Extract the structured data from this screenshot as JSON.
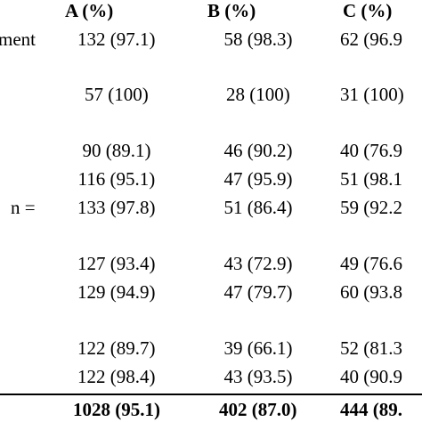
{
  "table": {
    "header": [
      "A (%)",
      "B (%)",
      "C (%)"
    ],
    "rows": [
      {
        "label": "ment",
        "cells": [
          "132 (97.1)",
          "58 (98.3)",
          "62 (96.9"
        ]
      },
      {
        "cells": [
          "57 (100)",
          "28 (100)",
          "31 (100)"
        ]
      },
      {
        "cells": [
          "90 (89.1)",
          "46 (90.2)",
          "40 (76.9"
        ]
      },
      {
        "cells": [
          "116 (95.1)",
          "47 (95.9)",
          "51 (98.1"
        ]
      },
      {
        "label": "n =",
        "cells": [
          "133 (97.8)",
          "51 (86.4)",
          "59 (92.2"
        ]
      },
      {
        "cells": [
          "127 (93.4)",
          "43 (72.9)",
          "49 (76.6"
        ]
      },
      {
        "cells": [
          "129 (94.9)",
          "47 (79.7)",
          "60 (93.8"
        ]
      },
      {
        "cells": [
          "122 (89.7)",
          "39 (66.1)",
          "52 (81.3"
        ]
      },
      {
        "cells": [
          "122 (98.4)",
          "43 (93.5)",
          "40 (90.9"
        ]
      }
    ],
    "total": [
      "1028 (95.1)",
      "402 (87.0)",
      "444 (89."
    ]
  }
}
